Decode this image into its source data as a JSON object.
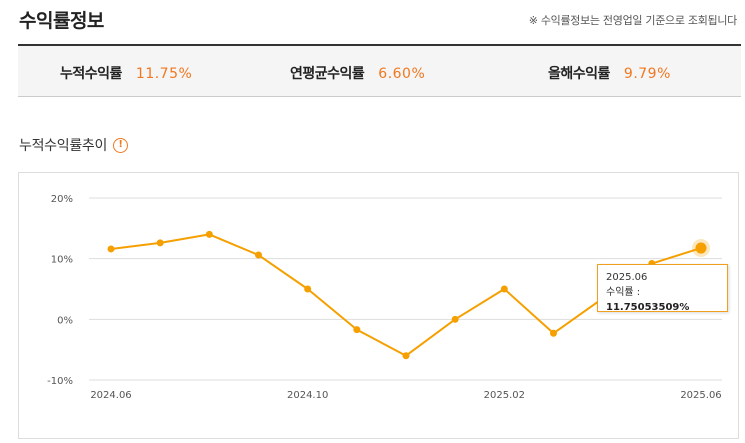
{
  "header": {
    "title": "수익률정보",
    "notice": "※ 수익률정보는 전영업일 기준으로 조회됩니다"
  },
  "summary": {
    "cumulative": {
      "label": "누적수익률",
      "value": "11.75%"
    },
    "annualized": {
      "label": "연평균수익률",
      "value": "6.60%"
    },
    "ytd": {
      "label": "올해수익률",
      "value": "9.79%"
    }
  },
  "trend": {
    "title": "누적수익률추이",
    "info_icon": "exclamation-circle-icon"
  },
  "tooltip": {
    "date": "2025.06",
    "label": "수익률 : ",
    "value": "11.75053509%"
  },
  "colors": {
    "accent": "#f07820",
    "line": "#f5a000",
    "grid": "#dddddd"
  },
  "chart_data": {
    "type": "line",
    "x": [
      "2024.06",
      "2024.07",
      "2024.08",
      "2024.09",
      "2024.10",
      "2024.11",
      "2024.12",
      "2025.01",
      "2025.02",
      "2025.03",
      "2025.04",
      "2025.05",
      "2025.06"
    ],
    "xticks": [
      "2024.06",
      "2024.10",
      "2025.02",
      "2025.06"
    ],
    "series": [
      {
        "values": [
          11.6,
          12.6,
          14.0,
          10.6,
          5.0,
          -1.7,
          -6.0,
          0.0,
          5.0,
          -2.3,
          null,
          9.2,
          11.75
        ]
      }
    ],
    "yticks": [
      "20%",
      "10%",
      "0%",
      "-10%"
    ],
    "ylim": [
      -10,
      20
    ],
    "grid": true,
    "highlight_index": 12
  }
}
